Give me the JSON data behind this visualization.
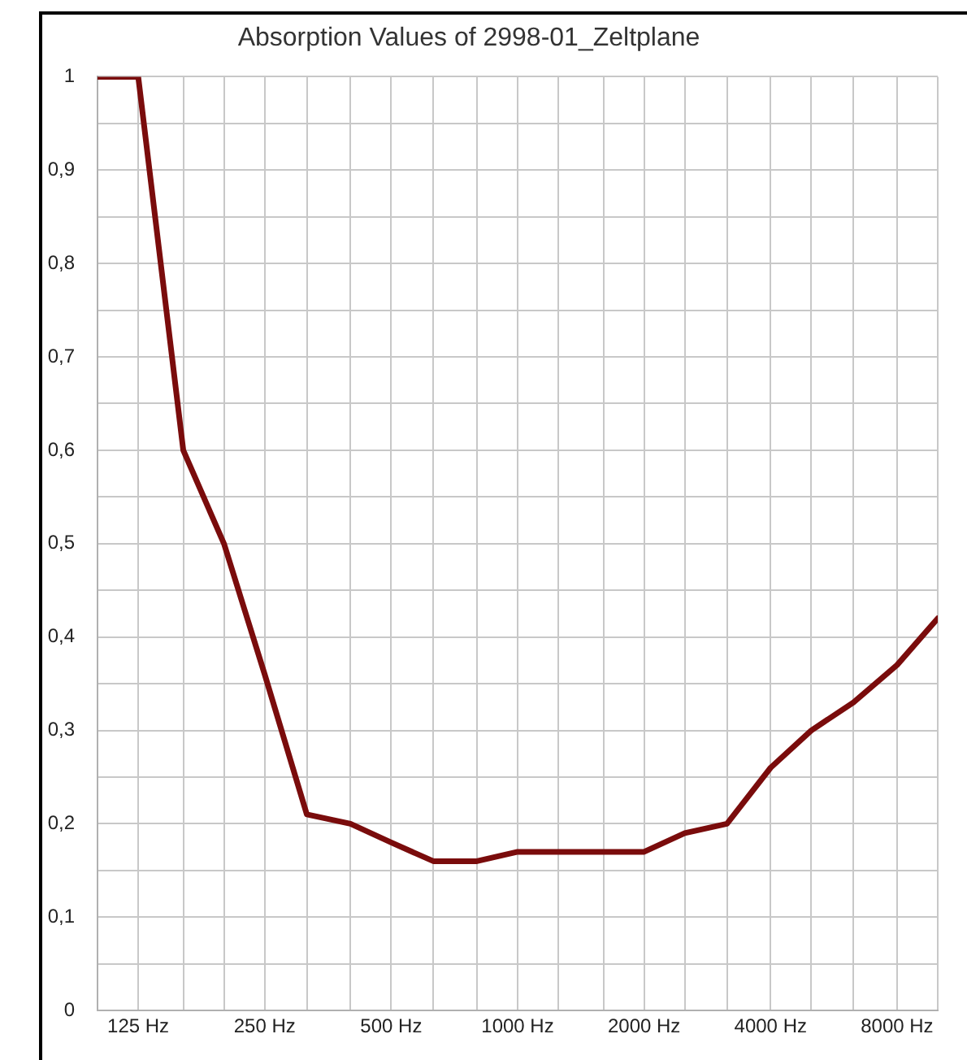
{
  "chart_data": {
    "type": "line",
    "title": "Absorption Values of 2998-01_Zeltplane",
    "x": [
      100,
      125,
      160,
      200,
      250,
      315,
      400,
      500,
      630,
      800,
      1000,
      1250,
      1600,
      2000,
      2500,
      3150,
      4000,
      5000,
      6300,
      8000,
      10000
    ],
    "series": [
      {
        "color": "#7a0c0c",
        "values": [
          1.0,
          1.0,
          0.6,
          0.5,
          0.36,
          0.21,
          0.2,
          0.18,
          0.16,
          0.16,
          0.17,
          0.17,
          0.17,
          0.17,
          0.19,
          0.2,
          0.26,
          0.3,
          0.33,
          0.37,
          0.42
        ]
      }
    ],
    "log": "x",
    "xlim": [
      100,
      10000
    ],
    "xticks": [
      {
        "value": 100,
        "label": null
      },
      {
        "value": 125,
        "label": "125 Hz"
      },
      {
        "value": 160,
        "label": null
      },
      {
        "value": 200,
        "label": null
      },
      {
        "value": 250,
        "label": "250 Hz"
      },
      {
        "value": 315,
        "label": null
      },
      {
        "value": 400,
        "label": null
      },
      {
        "value": 500,
        "label": "500 Hz"
      },
      {
        "value": 630,
        "label": null
      },
      {
        "value": 800,
        "label": null
      },
      {
        "value": 1000,
        "label": "1000 Hz"
      },
      {
        "value": 1250,
        "label": null
      },
      {
        "value": 1600,
        "label": null
      },
      {
        "value": 2000,
        "label": "2000 Hz"
      },
      {
        "value": 2500,
        "label": null
      },
      {
        "value": 3150,
        "label": null
      },
      {
        "value": 4000,
        "label": "4000 Hz"
      },
      {
        "value": 5000,
        "label": null
      },
      {
        "value": 6300,
        "label": null
      },
      {
        "value": 8000,
        "label": "8000 Hz"
      },
      {
        "value": 10000,
        "label": null
      }
    ],
    "ylim": [
      0,
      1
    ],
    "yticks": [
      0,
      {
        "value": 0.05,
        "label": null
      },
      {
        "value": 0.1,
        "label": "0,1"
      },
      {
        "value": 0.15,
        "label": null
      },
      {
        "value": 0.2,
        "label": "0,2"
      },
      {
        "value": 0.25,
        "label": null
      },
      {
        "value": 0.3,
        "label": "0,3"
      },
      {
        "value": 0.35,
        "label": null
      },
      {
        "value": 0.4,
        "label": "0,4"
      },
      {
        "value": 0.45,
        "label": null
      },
      {
        "value": 0.5,
        "label": "0,5"
      },
      {
        "value": 0.55,
        "label": null
      },
      {
        "value": 0.6,
        "label": "0,6"
      },
      {
        "value": 0.65,
        "label": null
      },
      {
        "value": 0.7,
        "label": "0,7"
      },
      {
        "value": 0.75,
        "label": null
      },
      {
        "value": 0.8,
        "label": "0,8"
      },
      {
        "value": 0.85,
        "label": null
      },
      {
        "value": 0.9,
        "label": "0,9"
      },
      {
        "value": 0.95,
        "label": null
      },
      1
    ],
    "grid": true,
    "legend": false,
    "marker": "none",
    "line_style": "solid"
  }
}
